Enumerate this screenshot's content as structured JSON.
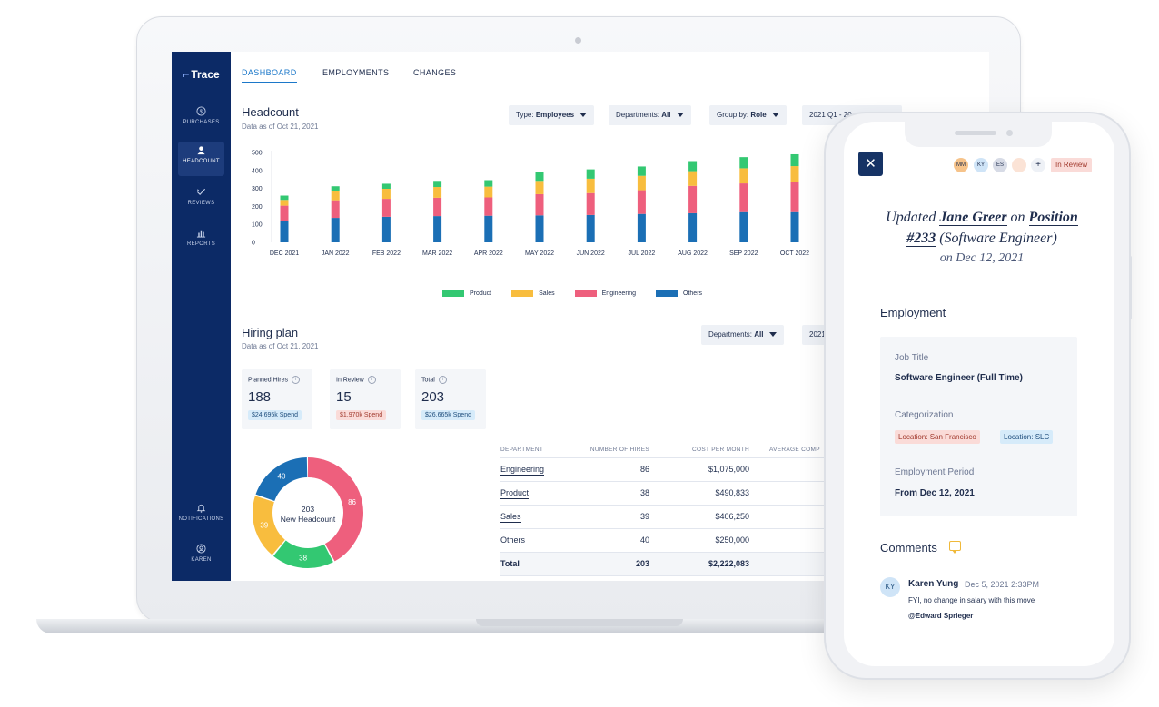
{
  "app": {
    "name": "Trace"
  },
  "sidebar": {
    "items": [
      {
        "label": "PURCHASES",
        "icon": "dollar-icon"
      },
      {
        "label": "HEADCOUNT",
        "icon": "person-icon",
        "active": true
      },
      {
        "label": "REVIEWS",
        "icon": "check-icon"
      },
      {
        "label": "REPORTS",
        "icon": "bar-chart-icon"
      }
    ],
    "bottom": [
      {
        "label": "NOTIFICATIONS",
        "icon": "bell-icon"
      },
      {
        "label": "KAREN",
        "icon": "user-circle-icon"
      }
    ]
  },
  "tabs": [
    {
      "label": "DASHBOARD",
      "active": true
    },
    {
      "label": "EMPLOYMENTS"
    },
    {
      "label": "CHANGES"
    }
  ],
  "headcount": {
    "title": "Headcount",
    "subtitle": "Data as of Oct 21, 2021",
    "filters": {
      "type_label": "Type:",
      "type_value": "Employees",
      "dept_label": "Departments:",
      "dept_value": "All",
      "group_label": "Group by:",
      "group_value": "Role",
      "period_value": "2021 Q1 - 20"
    }
  },
  "chart_data": {
    "type": "bar",
    "stacked": true,
    "categories": [
      "DEC 2021",
      "JAN 2022",
      "FEB 2022",
      "MAR 2022",
      "APR 2022",
      "MAY 2022",
      "JUN 2022",
      "JUL 2022",
      "AUG 2022",
      "SEP 2022",
      "OCT 2022"
    ],
    "series": [
      {
        "name": "Others",
        "color": "#1b6fb5",
        "values": [
          118,
          136,
          142,
          146,
          148,
          150,
          152,
          158,
          162,
          168,
          168
        ]
      },
      {
        "name": "Engineering",
        "color": "#ee5f7d",
        "values": [
          86,
          98,
          100,
          102,
          102,
          118,
          122,
          132,
          152,
          160,
          168
        ]
      },
      {
        "name": "Sales",
        "color": "#f8bd3e",
        "values": [
          32,
          54,
          56,
          60,
          60,
          74,
          80,
          80,
          82,
          84,
          88
        ]
      },
      {
        "name": "Product",
        "color": "#33c872",
        "values": [
          24,
          24,
          28,
          34,
          36,
          50,
          52,
          52,
          56,
          62,
          66
        ]
      }
    ],
    "legend_order": [
      "Product",
      "Sales",
      "Engineering",
      "Others"
    ],
    "ylim": [
      0,
      500
    ],
    "yticks": [
      0,
      100,
      200,
      300,
      400,
      500
    ],
    "legend": "bottom",
    "grid": false
  },
  "hiring_plan": {
    "title": "Hiring plan",
    "subtitle": "Data as of Oct 21, 2021",
    "filter_label": "Departments:",
    "filter_value": "All",
    "period_value": "2021",
    "cards": [
      {
        "label": "Planned Hires",
        "value": "188",
        "badge": "$24,695k Spend",
        "badge_color": "blue"
      },
      {
        "label": "In Review",
        "value": "15",
        "badge": "$1,970k Spend",
        "badge_color": "red"
      },
      {
        "label": "Total",
        "value": "203",
        "badge": "$26,665k Spend",
        "badge_color": "blue"
      }
    ],
    "donut": {
      "center_value": "203",
      "center_label": "New Headcount",
      "slices": [
        {
          "label": "86",
          "value": 86,
          "color": "#ee5f7d"
        },
        {
          "label": "38",
          "value": 38,
          "color": "#33c872"
        },
        {
          "label": "39",
          "value": 39,
          "color": "#f8bd3e"
        },
        {
          "label": "40",
          "value": 40,
          "color": "#1b6fb5"
        }
      ]
    },
    "table": {
      "columns": [
        "DEPARTMENT",
        "NUMBER OF HIRES",
        "COST PER MONTH",
        "AVERAGE COMP"
      ],
      "rows": [
        {
          "dept": "Engineering",
          "hires": "86",
          "cost": "$1,075,000",
          "link": true
        },
        {
          "dept": "Product",
          "hires": "38",
          "cost": "$490,833",
          "link": true
        },
        {
          "dept": "Sales",
          "hires": "39",
          "cost": "$406,250",
          "link": true
        },
        {
          "dept": "Others",
          "hires": "40",
          "cost": "$250,000",
          "link": false
        }
      ],
      "total": {
        "dept": "Total",
        "hires": "203",
        "cost": "$2,222,083"
      }
    }
  },
  "phone": {
    "avatars": [
      {
        "initials": "MM",
        "color": "#f6c38a"
      },
      {
        "initials": "KY",
        "color": "#cfe4f7"
      },
      {
        "initials": "ES",
        "color": "#d7dbe6"
      },
      {
        "initials": "",
        "color": "#fbe3d6"
      },
      {
        "initials": "+",
        "color": "#eef1f6"
      }
    ],
    "status": "In Review",
    "update": {
      "prefix": "Updated",
      "person": "Jane Greer",
      "on": "on",
      "position": "Position",
      "position_id": "#233",
      "role": "(Software Engineer)",
      "date": "on Dec 12, 2021"
    },
    "employment": {
      "heading": "Employment",
      "job_title_label": "Job Title",
      "job_title_value": "Software Engineer (Full Time)",
      "categorization_label": "Categorization",
      "tag_old": "Location: San Francisco",
      "tag_new": "Location: SLC",
      "period_label": "Employment Period",
      "period_value": "From Dec 12, 2021"
    },
    "comments": {
      "heading": "Comments",
      "items": [
        {
          "initials": "KY",
          "author": "Karen Yung",
          "time": "Dec 5, 2021 2:33PM",
          "text": "FYI, no change in salary with this move",
          "mention": "@Edward Sprieger"
        }
      ]
    }
  }
}
